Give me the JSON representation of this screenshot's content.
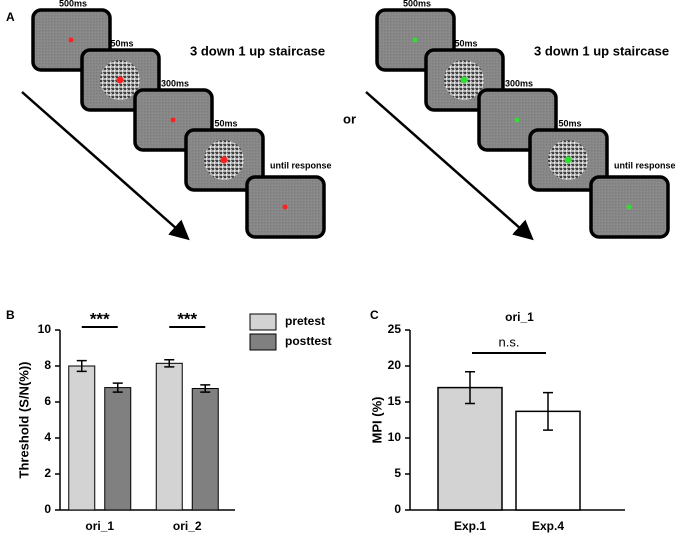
{
  "panel_a": {
    "label": "A",
    "separator": "or",
    "sequences": [
      {
        "title": "3 down 1 up staircase",
        "dot_color": "#ff2020",
        "frames": [
          {
            "duration": "500ms",
            "noise": false
          },
          {
            "duration": "50ms",
            "noise": true
          },
          {
            "duration": "300ms",
            "noise": false
          },
          {
            "duration": "50ms",
            "noise": true
          },
          {
            "duration": "until response",
            "noise": false
          }
        ]
      },
      {
        "title": "3 down 1 up staircase",
        "dot_color": "#30e030",
        "frames": [
          {
            "duration": "500ms",
            "noise": false
          },
          {
            "duration": "50ms",
            "noise": true
          },
          {
            "duration": "300ms",
            "noise": false
          },
          {
            "duration": "50ms",
            "noise": true
          },
          {
            "duration": "until response",
            "noise": false
          }
        ]
      }
    ]
  },
  "chart_data": [
    {
      "type": "bar",
      "panel": "B",
      "ylabel": "Threshold (S/N(%))",
      "categories": [
        "ori_1",
        "ori_2"
      ],
      "series": [
        {
          "name": "pretest",
          "color": "#d3d3d3",
          "values": [
            8.0,
            8.15
          ],
          "errors": [
            0.3,
            0.2
          ]
        },
        {
          "name": "posttest",
          "color": "#808080",
          "values": [
            6.8,
            6.75
          ],
          "errors": [
            0.25,
            0.2
          ]
        }
      ],
      "annotations": [
        "***",
        "***"
      ],
      "ylim": [
        0,
        10
      ],
      "yticks": [
        0,
        2,
        4,
        6,
        8,
        10
      ]
    },
    {
      "type": "bar",
      "panel": "C",
      "title": "ori_1",
      "ylabel": "MPI (%)",
      "categories": [
        "Exp.1",
        "Exp.4"
      ],
      "values": [
        17,
        13.7
      ],
      "errors": [
        2.2,
        2.6
      ],
      "colors": [
        "#d3d3d3",
        "#ffffff"
      ],
      "annotations": [
        "n.s."
      ],
      "ylim": [
        0,
        25
      ],
      "yticks": [
        0,
        5,
        10,
        15,
        20,
        25
      ]
    }
  ]
}
